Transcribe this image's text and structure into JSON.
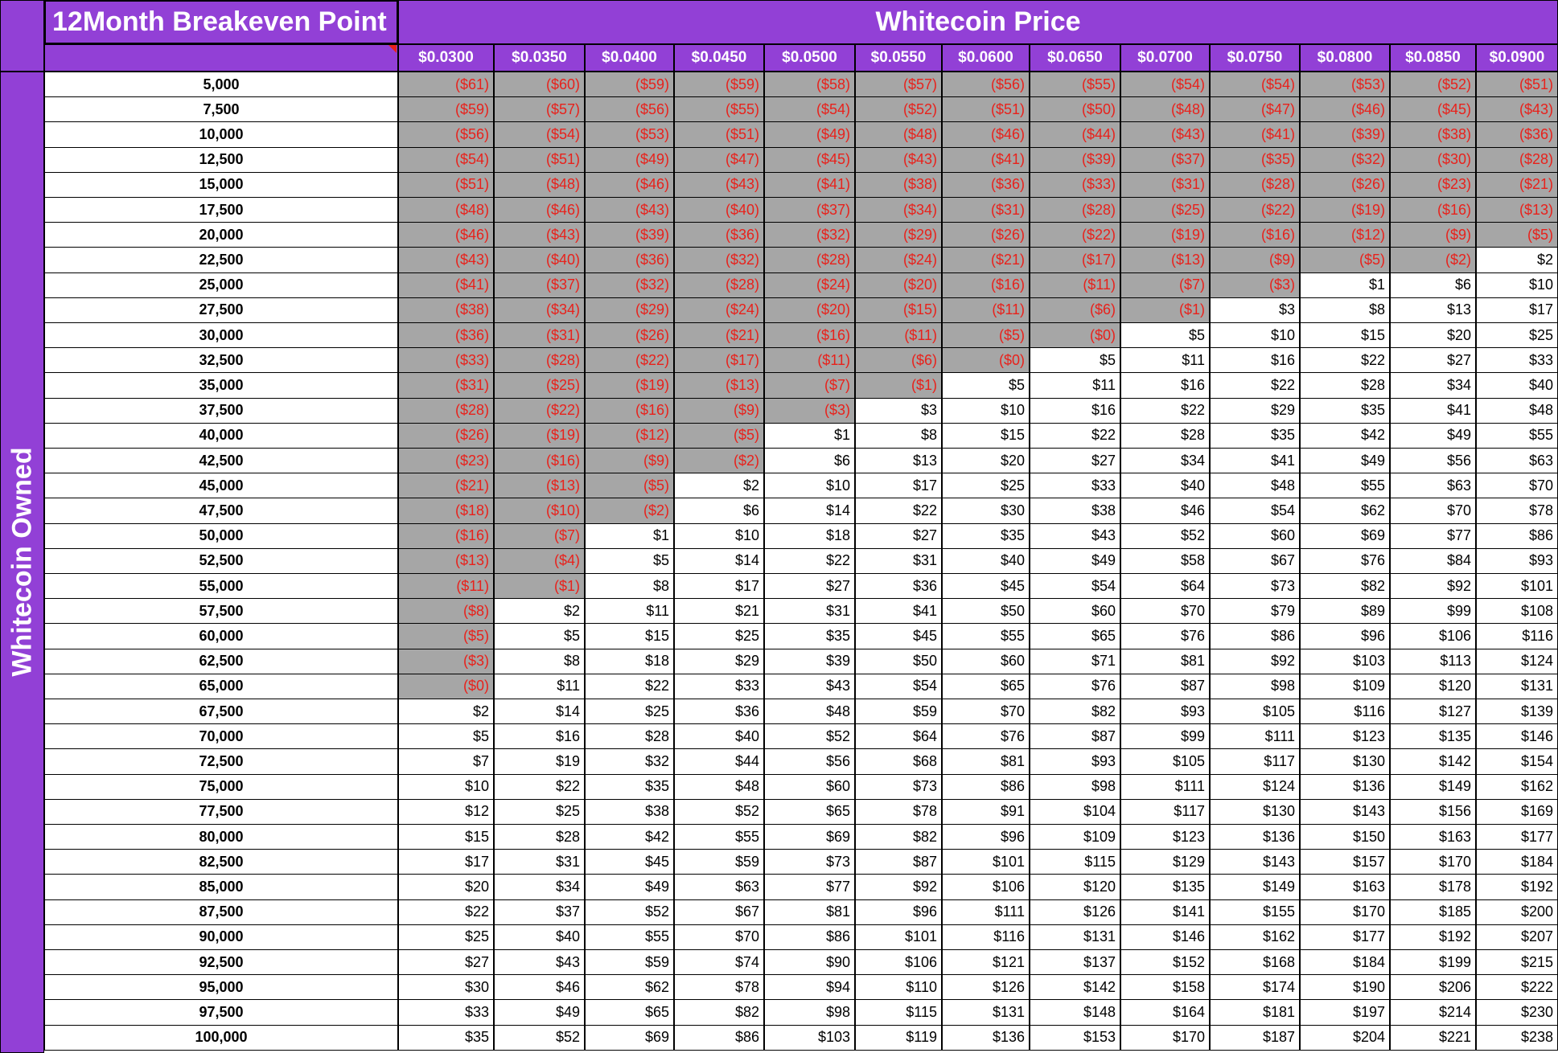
{
  "sheet": {
    "title": "12Month Breakeven Point",
    "column_group_label": "Whitecoin Price",
    "row_group_label": "Whitecoin Owned",
    "colors": {
      "header_bg": "#9240d6",
      "header_text": "#ffffff",
      "negative_bg": "#a6a6a6",
      "negative_text": "#e8211b"
    },
    "prices": [
      "$0.0300",
      "$0.0350",
      "$0.0400",
      "$0.0450",
      "$0.0500",
      "$0.0550",
      "$0.0600",
      "$0.0650",
      "$0.0700",
      "$0.0750",
      "$0.0800",
      "$0.0850",
      "$0.0900"
    ],
    "rows": [
      {
        "owned": "5,000",
        "values": [
          "($61)",
          "($60)",
          "($59)",
          "($59)",
          "($58)",
          "($57)",
          "($56)",
          "($55)",
          "($54)",
          "($54)",
          "($53)",
          "($52)",
          "($51)"
        ]
      },
      {
        "owned": "7,500",
        "values": [
          "($59)",
          "($57)",
          "($56)",
          "($55)",
          "($54)",
          "($52)",
          "($51)",
          "($50)",
          "($48)",
          "($47)",
          "($46)",
          "($45)",
          "($43)"
        ]
      },
      {
        "owned": "10,000",
        "values": [
          "($56)",
          "($54)",
          "($53)",
          "($51)",
          "($49)",
          "($48)",
          "($46)",
          "($44)",
          "($43)",
          "($41)",
          "($39)",
          "($38)",
          "($36)"
        ]
      },
      {
        "owned": "12,500",
        "values": [
          "($54)",
          "($51)",
          "($49)",
          "($47)",
          "($45)",
          "($43)",
          "($41)",
          "($39)",
          "($37)",
          "($35)",
          "($32)",
          "($30)",
          "($28)"
        ]
      },
      {
        "owned": "15,000",
        "values": [
          "($51)",
          "($48)",
          "($46)",
          "($43)",
          "($41)",
          "($38)",
          "($36)",
          "($33)",
          "($31)",
          "($28)",
          "($26)",
          "($23)",
          "($21)"
        ]
      },
      {
        "owned": "17,500",
        "values": [
          "($48)",
          "($46)",
          "($43)",
          "($40)",
          "($37)",
          "($34)",
          "($31)",
          "($28)",
          "($25)",
          "($22)",
          "($19)",
          "($16)",
          "($13)"
        ]
      },
      {
        "owned": "20,000",
        "values": [
          "($46)",
          "($43)",
          "($39)",
          "($36)",
          "($32)",
          "($29)",
          "($26)",
          "($22)",
          "($19)",
          "($16)",
          "($12)",
          "($9)",
          "($5)"
        ]
      },
      {
        "owned": "22,500",
        "values": [
          "($43)",
          "($40)",
          "($36)",
          "($32)",
          "($28)",
          "($24)",
          "($21)",
          "($17)",
          "($13)",
          "($9)",
          "($5)",
          "($2)",
          "$2"
        ]
      },
      {
        "owned": "25,000",
        "values": [
          "($41)",
          "($37)",
          "($32)",
          "($28)",
          "($24)",
          "($20)",
          "($16)",
          "($11)",
          "($7)",
          "($3)",
          "$1",
          "$6",
          "$10"
        ]
      },
      {
        "owned": "27,500",
        "values": [
          "($38)",
          "($34)",
          "($29)",
          "($24)",
          "($20)",
          "($15)",
          "($11)",
          "($6)",
          "($1)",
          "$3",
          "$8",
          "$13",
          "$17"
        ]
      },
      {
        "owned": "30,000",
        "values": [
          "($36)",
          "($31)",
          "($26)",
          "($21)",
          "($16)",
          "($11)",
          "($5)",
          "($0)",
          "$5",
          "$10",
          "$15",
          "$20",
          "$25"
        ]
      },
      {
        "owned": "32,500",
        "values": [
          "($33)",
          "($28)",
          "($22)",
          "($17)",
          "($11)",
          "($6)",
          "($0)",
          "$5",
          "$11",
          "$16",
          "$22",
          "$27",
          "$33"
        ]
      },
      {
        "owned": "35,000",
        "values": [
          "($31)",
          "($25)",
          "($19)",
          "($13)",
          "($7)",
          "($1)",
          "$5",
          "$11",
          "$16",
          "$22",
          "$28",
          "$34",
          "$40"
        ]
      },
      {
        "owned": "37,500",
        "values": [
          "($28)",
          "($22)",
          "($16)",
          "($9)",
          "($3)",
          "$3",
          "$10",
          "$16",
          "$22",
          "$29",
          "$35",
          "$41",
          "$48"
        ]
      },
      {
        "owned": "40,000",
        "values": [
          "($26)",
          "($19)",
          "($12)",
          "($5)",
          "$1",
          "$8",
          "$15",
          "$22",
          "$28",
          "$35",
          "$42",
          "$49",
          "$55"
        ]
      },
      {
        "owned": "42,500",
        "values": [
          "($23)",
          "($16)",
          "($9)",
          "($2)",
          "$6",
          "$13",
          "$20",
          "$27",
          "$34",
          "$41",
          "$49",
          "$56",
          "$63"
        ]
      },
      {
        "owned": "45,000",
        "values": [
          "($21)",
          "($13)",
          "($5)",
          "$2",
          "$10",
          "$17",
          "$25",
          "$33",
          "$40",
          "$48",
          "$55",
          "$63",
          "$70"
        ]
      },
      {
        "owned": "47,500",
        "values": [
          "($18)",
          "($10)",
          "($2)",
          "$6",
          "$14",
          "$22",
          "$30",
          "$38",
          "$46",
          "$54",
          "$62",
          "$70",
          "$78"
        ]
      },
      {
        "owned": "50,000",
        "values": [
          "($16)",
          "($7)",
          "$1",
          "$10",
          "$18",
          "$27",
          "$35",
          "$43",
          "$52",
          "$60",
          "$69",
          "$77",
          "$86"
        ]
      },
      {
        "owned": "52,500",
        "values": [
          "($13)",
          "($4)",
          "$5",
          "$14",
          "$22",
          "$31",
          "$40",
          "$49",
          "$58",
          "$67",
          "$76",
          "$84",
          "$93"
        ]
      },
      {
        "owned": "55,000",
        "values": [
          "($11)",
          "($1)",
          "$8",
          "$17",
          "$27",
          "$36",
          "$45",
          "$54",
          "$64",
          "$73",
          "$82",
          "$92",
          "$101"
        ]
      },
      {
        "owned": "57,500",
        "values": [
          "($8)",
          "$2",
          "$11",
          "$21",
          "$31",
          "$41",
          "$50",
          "$60",
          "$70",
          "$79",
          "$89",
          "$99",
          "$108"
        ]
      },
      {
        "owned": "60,000",
        "values": [
          "($5)",
          "$5",
          "$15",
          "$25",
          "$35",
          "$45",
          "$55",
          "$65",
          "$76",
          "$86",
          "$96",
          "$106",
          "$116"
        ]
      },
      {
        "owned": "62,500",
        "values": [
          "($3)",
          "$8",
          "$18",
          "$29",
          "$39",
          "$50",
          "$60",
          "$71",
          "$81",
          "$92",
          "$103",
          "$113",
          "$124"
        ]
      },
      {
        "owned": "65,000",
        "values": [
          "($0)",
          "$11",
          "$22",
          "$33",
          "$43",
          "$54",
          "$65",
          "$76",
          "$87",
          "$98",
          "$109",
          "$120",
          "$131"
        ]
      },
      {
        "owned": "67,500",
        "values": [
          "$2",
          "$14",
          "$25",
          "$36",
          "$48",
          "$59",
          "$70",
          "$82",
          "$93",
          "$105",
          "$116",
          "$127",
          "$139"
        ]
      },
      {
        "owned": "70,000",
        "values": [
          "$5",
          "$16",
          "$28",
          "$40",
          "$52",
          "$64",
          "$76",
          "$87",
          "$99",
          "$111",
          "$123",
          "$135",
          "$146"
        ]
      },
      {
        "owned": "72,500",
        "values": [
          "$7",
          "$19",
          "$32",
          "$44",
          "$56",
          "$68",
          "$81",
          "$93",
          "$105",
          "$117",
          "$130",
          "$142",
          "$154"
        ]
      },
      {
        "owned": "75,000",
        "values": [
          "$10",
          "$22",
          "$35",
          "$48",
          "$60",
          "$73",
          "$86",
          "$98",
          "$111",
          "$124",
          "$136",
          "$149",
          "$162"
        ]
      },
      {
        "owned": "77,500",
        "values": [
          "$12",
          "$25",
          "$38",
          "$52",
          "$65",
          "$78",
          "$91",
          "$104",
          "$117",
          "$130",
          "$143",
          "$156",
          "$169"
        ]
      },
      {
        "owned": "80,000",
        "values": [
          "$15",
          "$28",
          "$42",
          "$55",
          "$69",
          "$82",
          "$96",
          "$109",
          "$123",
          "$136",
          "$150",
          "$163",
          "$177"
        ]
      },
      {
        "owned": "82,500",
        "values": [
          "$17",
          "$31",
          "$45",
          "$59",
          "$73",
          "$87",
          "$101",
          "$115",
          "$129",
          "$143",
          "$157",
          "$170",
          "$184"
        ]
      },
      {
        "owned": "85,000",
        "values": [
          "$20",
          "$34",
          "$49",
          "$63",
          "$77",
          "$92",
          "$106",
          "$120",
          "$135",
          "$149",
          "$163",
          "$178",
          "$192"
        ]
      },
      {
        "owned": "87,500",
        "values": [
          "$22",
          "$37",
          "$52",
          "$67",
          "$81",
          "$96",
          "$111",
          "$126",
          "$141",
          "$155",
          "$170",
          "$185",
          "$200"
        ]
      },
      {
        "owned": "90,000",
        "values": [
          "$25",
          "$40",
          "$55",
          "$70",
          "$86",
          "$101",
          "$116",
          "$131",
          "$146",
          "$162",
          "$177",
          "$192",
          "$207"
        ]
      },
      {
        "owned": "92,500",
        "values": [
          "$27",
          "$43",
          "$59",
          "$74",
          "$90",
          "$106",
          "$121",
          "$137",
          "$152",
          "$168",
          "$184",
          "$199",
          "$215"
        ]
      },
      {
        "owned": "95,000",
        "values": [
          "$30",
          "$46",
          "$62",
          "$78",
          "$94",
          "$110",
          "$126",
          "$142",
          "$158",
          "$174",
          "$190",
          "$206",
          "$222"
        ]
      },
      {
        "owned": "97,500",
        "values": [
          "$33",
          "$49",
          "$65",
          "$82",
          "$98",
          "$115",
          "$131",
          "$148",
          "$164",
          "$181",
          "$197",
          "$214",
          "$230"
        ]
      },
      {
        "owned": "100,000",
        "values": [
          "$35",
          "$52",
          "$69",
          "$86",
          "$103",
          "$119",
          "$136",
          "$153",
          "$170",
          "$187",
          "$204",
          "$221",
          "$238"
        ]
      }
    ]
  }
}
